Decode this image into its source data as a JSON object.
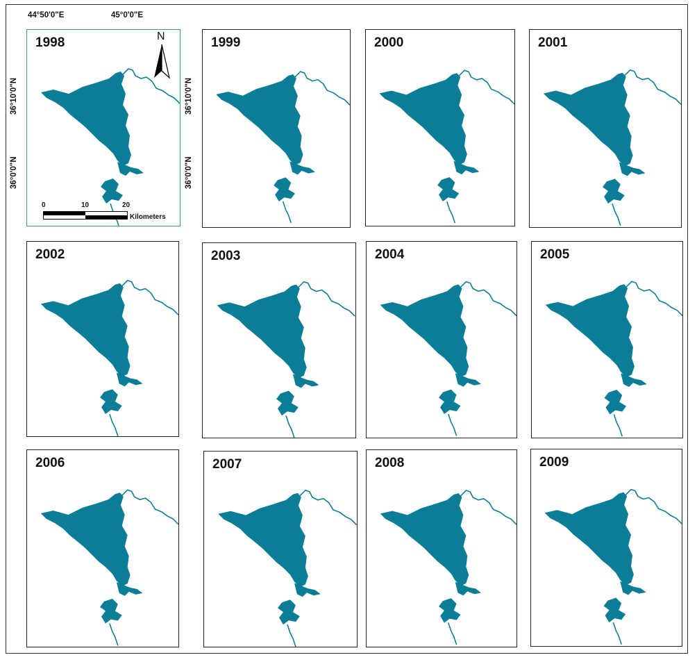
{
  "figure": {
    "lake_color": "#0b7d96",
    "panels": [
      {
        "year": "1998"
      },
      {
        "year": "1999"
      },
      {
        "year": "2000"
      },
      {
        "year": "2001"
      },
      {
        "year": "2002"
      },
      {
        "year": "2003"
      },
      {
        "year": "2004"
      },
      {
        "year": "2005"
      },
      {
        "year": "2006"
      },
      {
        "year": "2007"
      },
      {
        "year": "2008"
      },
      {
        "year": "2009"
      }
    ]
  },
  "map_annotations": {
    "longitude_labels": [
      "44°50'0\"E",
      "45°0'0\"E"
    ],
    "latitude_labels": [
      "36°10'0\"N",
      "36°0'0\"N"
    ],
    "north_label": "N",
    "scale_ticks": [
      "0",
      "10",
      "20"
    ],
    "scale_unit": "Kilometers"
  }
}
